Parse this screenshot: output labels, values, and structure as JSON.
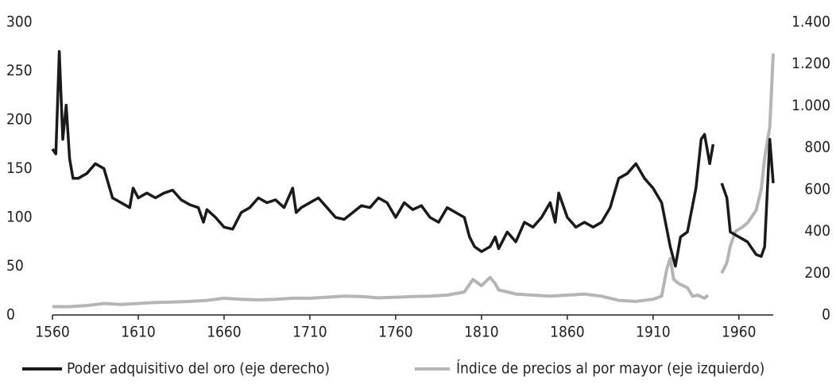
{
  "chart_data": {
    "type": "line",
    "xlim": [
      1560,
      1980
    ],
    "xticks": [
      1560,
      1610,
      1660,
      1710,
      1760,
      1810,
      1860,
      1910,
      1960
    ],
    "ylim": [
      0,
      300
    ],
    "yticks": [
      0,
      50,
      100,
      150,
      200,
      250,
      300
    ],
    "y2lim": [
      0,
      1400
    ],
    "y2ticks": [
      0,
      200,
      400,
      600,
      800,
      {
        "value": 1000,
        "label": "1.000"
      },
      {
        "value": 1200,
        "label": "1.200"
      },
      {
        "value": 1400,
        "label": "1.400"
      }
    ],
    "series": [
      {
        "name": "Poder adquisitivo del oro (eje derecho)",
        "color": "#1a1a1a",
        "axis": "y",
        "x": [
          1560,
          1562,
          1564,
          1566,
          1568,
          1570,
          1572,
          1575,
          1580,
          1585,
          1590,
          1595,
          1600,
          1605,
          1607,
          1610,
          1615,
          1620,
          1625,
          1630,
          1635,
          1640,
          1645,
          1648,
          1650,
          1655,
          1660,
          1665,
          1670,
          1675,
          1680,
          1685,
          1690,
          1695,
          1700,
          1702,
          1705,
          1710,
          1715,
          1720,
          1725,
          1730,
          1735,
          1740,
          1745,
          1750,
          1755,
          1760,
          1765,
          1770,
          1775,
          1780,
          1785,
          1790,
          1795,
          1800,
          1803,
          1806,
          1810,
          1815,
          1818,
          1820,
          1825,
          1830,
          1835,
          1840,
          1845,
          1850,
          1853,
          1855,
          1860,
          1865,
          1870,
          1875,
          1880,
          1885,
          1890,
          1895,
          1900,
          1905,
          1910,
          1915,
          1920,
          1923,
          1926,
          1930,
          1935,
          1938,
          1940,
          1943,
          1945,
          1947,
          1950,
          1953,
          1955,
          1960,
          1965,
          1970,
          1973,
          1975,
          1978,
          1980
        ],
        "values": [
          170,
          165,
          270,
          180,
          215,
          160,
          140,
          140,
          145,
          155,
          150,
          120,
          115,
          110,
          130,
          120,
          125,
          120,
          125,
          128,
          118,
          113,
          110,
          95,
          108,
          100,
          90,
          88,
          105,
          110,
          120,
          115,
          118,
          110,
          130,
          105,
          110,
          115,
          120,
          110,
          100,
          98,
          105,
          112,
          110,
          120,
          115,
          100,
          115,
          108,
          112,
          100,
          95,
          110,
          105,
          100,
          80,
          70,
          65,
          70,
          80,
          68,
          85,
          75,
          95,
          90,
          100,
          115,
          95,
          125,
          100,
          90,
          95,
          90,
          95,
          110,
          140,
          145,
          155,
          140,
          130,
          115,
          70,
          50,
          80,
          85,
          130,
          180,
          185,
          155,
          175,
          null,
          135,
          120,
          85,
          80,
          75,
          62,
          60,
          70,
          180,
          135
        ]
      },
      {
        "name": "Índice de precios al por mayor (eje izquierdo)",
        "color": "#b5b5b5",
        "axis": "y2",
        "x": [
          1560,
          1570,
          1580,
          1590,
          1600,
          1610,
          1620,
          1630,
          1640,
          1650,
          1660,
          1670,
          1680,
          1690,
          1700,
          1710,
          1720,
          1730,
          1740,
          1750,
          1760,
          1770,
          1780,
          1790,
          1800,
          1805,
          1810,
          1815,
          1818,
          1820,
          1825,
          1830,
          1840,
          1850,
          1860,
          1870,
          1880,
          1890,
          1900,
          1910,
          1915,
          1918,
          1920,
          1922,
          1925,
          1930,
          1933,
          1936,
          1940,
          1942,
          1946,
          1950,
          1953,
          1955,
          1958,
          1962,
          1965,
          1970,
          1973,
          1975,
          1978,
          1980
        ],
        "values": [
          40,
          40,
          45,
          55,
          50,
          55,
          60,
          62,
          65,
          70,
          80,
          75,
          72,
          75,
          80,
          80,
          85,
          90,
          88,
          82,
          85,
          88,
          90,
          95,
          110,
          170,
          140,
          180,
          150,
          120,
          110,
          100,
          95,
          90,
          95,
          100,
          90,
          70,
          65,
          75,
          90,
          220,
          270,
          170,
          150,
          130,
          90,
          95,
          80,
          95,
          null,
          200,
          250,
          330,
          400,
          420,
          440,
          500,
          600,
          750,
          900,
          1250
        ]
      }
    ]
  }
}
